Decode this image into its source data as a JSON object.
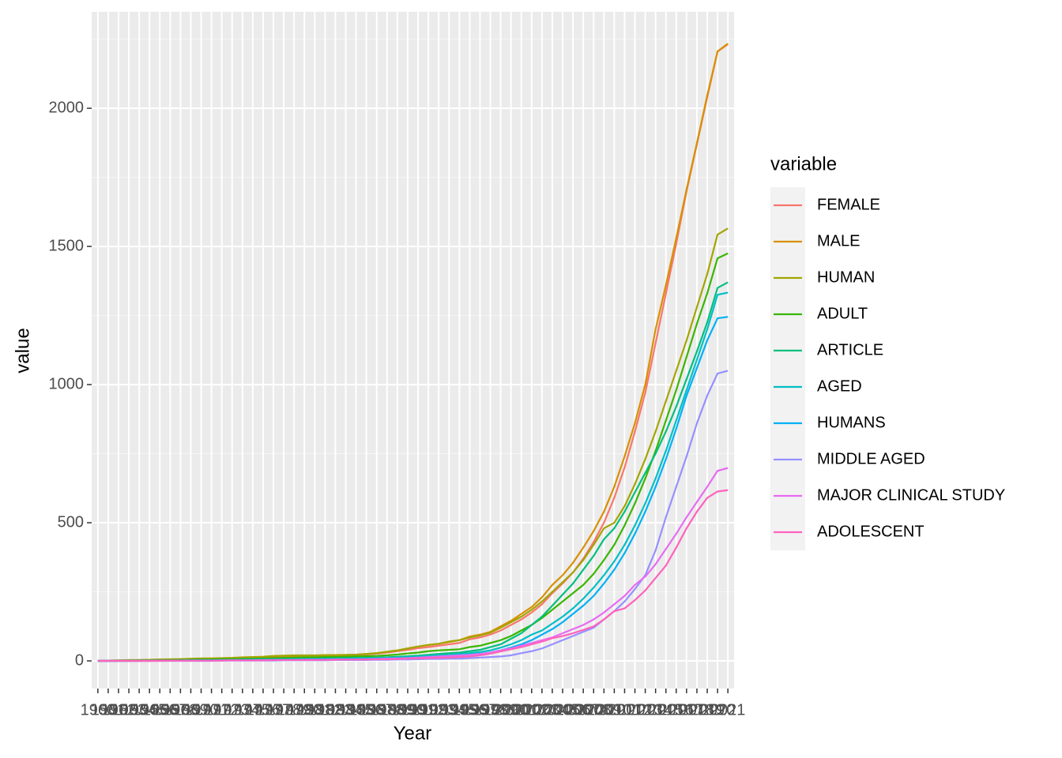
{
  "chart_data": {
    "type": "line",
    "x_label": "Year",
    "y_label": "value",
    "legend_title": "variable",
    "legend_position": "right",
    "grid": true,
    "categories": [
      "1960",
      "1961",
      "1962",
      "1963",
      "1964",
      "1965",
      "1966",
      "1967",
      "1968",
      "1969",
      "1970",
      "1971",
      "1972",
      "1973",
      "1974",
      "1975",
      "1976",
      "1977",
      "1978",
      "1979",
      "1980",
      "1981",
      "1982",
      "1983",
      "1984",
      "1985",
      "1986",
      "1987",
      "1988",
      "1989",
      "1990",
      "1991",
      "1992",
      "1993",
      "1994",
      "1995",
      "1996",
      "1997",
      "1998",
      "1999",
      "2000",
      "2001",
      "2002",
      "2003",
      "2004",
      "2005",
      "2006",
      "2007",
      "2008",
      "2009",
      "2010",
      "2011",
      "2012",
      "2013",
      "2014",
      "2015",
      "2016",
      "2017",
      "2018",
      "2019",
      "2020",
      "2021"
    ],
    "ylim": [
      -100,
      2349
    ],
    "yticks": [
      0,
      500,
      1000,
      1500,
      2000
    ],
    "series": [
      {
        "name": "FEMALE",
        "color": "#F8766D",
        "values": [
          0,
          1,
          1,
          2,
          3,
          3,
          4,
          5,
          5,
          6,
          7,
          8,
          8,
          9,
          11,
          12,
          13,
          15,
          16,
          17,
          18,
          18,
          19,
          19,
          20,
          21,
          23,
          26,
          30,
          35,
          40,
          46,
          50,
          55,
          60,
          65,
          78,
          85,
          95,
          110,
          130,
          150,
          175,
          205,
          245,
          280,
          320,
          370,
          430,
          500,
          590,
          700,
          830,
          970,
          1150,
          1330,
          1510,
          1700,
          1870,
          2040,
          2205,
          2232
        ]
      },
      {
        "name": "MALE",
        "color": "#D89000",
        "values": [
          0,
          1,
          2,
          3,
          3,
          4,
          5,
          5,
          6,
          7,
          8,
          9,
          9,
          10,
          12,
          13,
          14,
          17,
          18,
          18,
          19,
          19,
          20,
          20,
          21,
          22,
          25,
          28,
          33,
          38,
          45,
          52,
          57,
          62,
          68,
          75,
          88,
          95,
          105,
          125,
          145,
          170,
          195,
          230,
          275,
          310,
          355,
          410,
          470,
          540,
          630,
          740,
          860,
          1000,
          1200,
          1360,
          1530,
          1706,
          1874,
          2046,
          2206,
          2234
        ]
      },
      {
        "name": "HUMAN",
        "color": "#A3A500",
        "values": [
          0,
          1,
          2,
          3,
          3,
          4,
          5,
          6,
          6,
          8,
          9,
          9,
          10,
          11,
          13,
          14,
          15,
          18,
          19,
          20,
          20,
          20,
          21,
          21,
          22,
          23,
          25,
          28,
          33,
          38,
          45,
          52,
          58,
          62,
          70,
          75,
          85,
          92,
          102,
          120,
          140,
          160,
          185,
          215,
          250,
          285,
          320,
          365,
          420,
          480,
          500,
          560,
          640,
          730,
          830,
          940,
          1050,
          1160,
          1280,
          1400,
          1543,
          1565
        ]
      },
      {
        "name": "ADULT",
        "color": "#39B600",
        "values": [
          0,
          0,
          1,
          1,
          2,
          2,
          3,
          3,
          4,
          4,
          5,
          5,
          6,
          6,
          7,
          8,
          9,
          10,
          11,
          12,
          13,
          13,
          14,
          14,
          15,
          16,
          17,
          18,
          20,
          23,
          27,
          30,
          35,
          38,
          40,
          42,
          50,
          55,
          65,
          75,
          90,
          110,
          130,
          155,
          185,
          215,
          245,
          275,
          315,
          365,
          420,
          490,
          570,
          660,
          760,
          870,
          980,
          1100,
          1220,
          1330,
          1457,
          1475
        ]
      },
      {
        "name": "ARTICLE",
        "color": "#00BF7D",
        "values": [
          0,
          0,
          0,
          1,
          1,
          1,
          2,
          2,
          2,
          3,
          3,
          3,
          4,
          4,
          5,
          5,
          6,
          6,
          7,
          7,
          8,
          8,
          9,
          9,
          10,
          10,
          11,
          12,
          13,
          15,
          17,
          19,
          22,
          25,
          28,
          30,
          35,
          40,
          50,
          60,
          80,
          100,
          130,
          160,
          200,
          240,
          280,
          330,
          380,
          440,
          480,
          540,
          610,
          680,
          750,
          830,
          920,
          1020,
          1120,
          1225,
          1350,
          1370
        ]
      },
      {
        "name": "AGED",
        "color": "#00BFC4",
        "values": [
          0,
          0,
          0,
          0,
          1,
          1,
          1,
          1,
          2,
          2,
          2,
          2,
          3,
          3,
          3,
          4,
          4,
          5,
          5,
          6,
          6,
          7,
          7,
          8,
          8,
          9,
          9,
          10,
          11,
          12,
          14,
          16,
          18,
          20,
          22,
          25,
          28,
          32,
          38,
          48,
          60,
          75,
          95,
          110,
          135,
          160,
          190,
          225,
          265,
          310,
          360,
          420,
          490,
          570,
          660,
          760,
          870,
          980,
          1090,
          1200,
          1325,
          1333
        ]
      },
      {
        "name": "HUMANS",
        "color": "#00B0F6",
        "values": [
          0,
          0,
          0,
          0,
          0,
          1,
          1,
          1,
          1,
          1,
          2,
          2,
          2,
          2,
          3,
          3,
          3,
          4,
          4,
          4,
          5,
          5,
          6,
          6,
          6,
          7,
          7,
          8,
          9,
          10,
          11,
          12,
          14,
          15,
          17,
          19,
          22,
          26,
          30,
          38,
          48,
          60,
          75,
          95,
          115,
          140,
          170,
          200,
          235,
          280,
          330,
          390,
          460,
          540,
          630,
          730,
          840,
          960,
          1060,
          1160,
          1240,
          1245
        ]
      },
      {
        "name": "MIDDLE AGED",
        "color": "#9590FF",
        "values": [
          0,
          0,
          0,
          0,
          0,
          0,
          0,
          0,
          0,
          0,
          0,
          0,
          1,
          1,
          1,
          1,
          1,
          1,
          2,
          2,
          2,
          2,
          2,
          3,
          3,
          3,
          3,
          4,
          4,
          5,
          5,
          6,
          7,
          7,
          8,
          8,
          10,
          12,
          14,
          16,
          20,
          28,
          35,
          45,
          60,
          75,
          90,
          105,
          120,
          150,
          180,
          215,
          260,
          310,
          400,
          520,
          630,
          740,
          860,
          960,
          1040,
          1050
        ]
      },
      {
        "name": "MAJOR CLINICAL STUDY",
        "color": "#E76BF3",
        "values": [
          0,
          0,
          0,
          0,
          0,
          0,
          1,
          1,
          1,
          1,
          1,
          1,
          2,
          2,
          2,
          2,
          3,
          3,
          3,
          3,
          4,
          4,
          4,
          5,
          5,
          5,
          6,
          7,
          8,
          9,
          10,
          12,
          14,
          16,
          18,
          20,
          22,
          25,
          30,
          38,
          45,
          55,
          65,
          75,
          85,
          100,
          115,
          130,
          150,
          175,
          205,
          235,
          275,
          305,
          350,
          405,
          460,
          520,
          575,
          630,
          688,
          698
        ]
      },
      {
        "name": "ADOLESCENT",
        "color": "#FF62BC",
        "values": [
          0,
          0,
          0,
          0,
          0,
          0,
          0,
          1,
          1,
          1,
          1,
          1,
          1,
          2,
          2,
          2,
          2,
          3,
          3,
          3,
          3,
          4,
          4,
          4,
          5,
          5,
          5,
          6,
          6,
          7,
          8,
          9,
          10,
          11,
          12,
          14,
          16,
          20,
          26,
          34,
          42,
          50,
          60,
          70,
          82,
          90,
          100,
          112,
          125,
          150,
          180,
          190,
          220,
          255,
          300,
          345,
          410,
          480,
          540,
          590,
          613,
          618
        ]
      }
    ]
  }
}
